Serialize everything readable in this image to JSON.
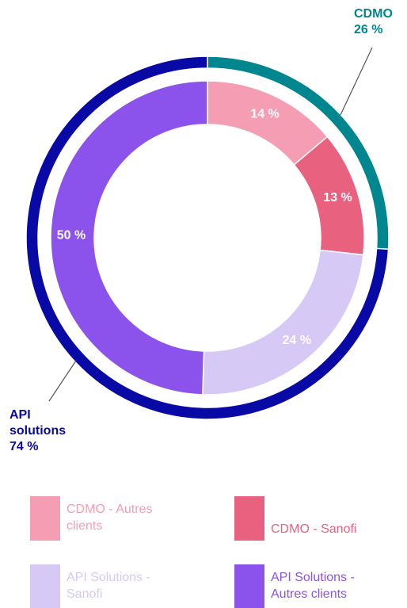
{
  "chart_data": {
    "type": "nested-donut",
    "inner": {
      "categories": [
        "CDMO - Autres clients",
        "CDMO - Sanofi",
        "API Solutions - Sanofi",
        "API Solutions  - Autres clients"
      ],
      "values": [
        14,
        13,
        24,
        50
      ],
      "value_labels": [
        "14 %",
        "13 %",
        "24 %",
        "50 %"
      ],
      "colors": [
        "#f59db3",
        "#e8617f",
        "#d7c9f5",
        "#8b53ec"
      ]
    },
    "outer": {
      "categories": [
        "CDMO",
        "API solutions"
      ],
      "values": [
        26,
        74
      ],
      "value_labels": [
        "26 %",
        "74 %"
      ],
      "colors": [
        "#00868f",
        "#0909a6"
      ]
    }
  }
}
